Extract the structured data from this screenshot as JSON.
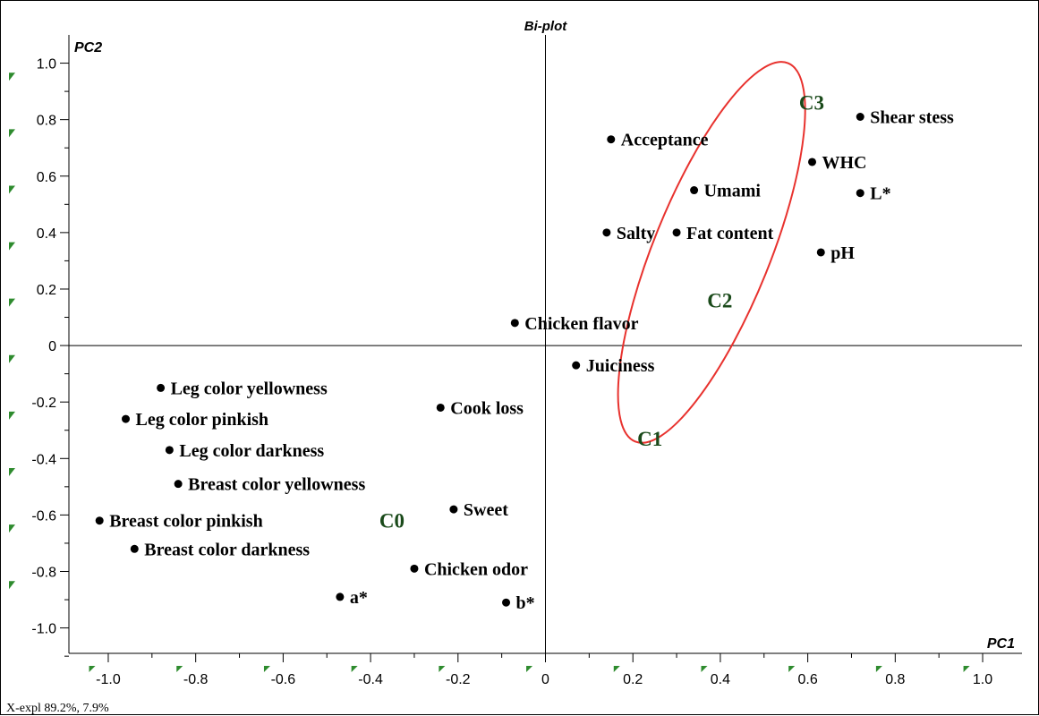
{
  "chart_data": {
    "type": "scatter",
    "title": "Bi-plot",
    "xlabel": "PC1",
    "ylabel": "PC2",
    "xlim": [
      -1.09,
      1.09
    ],
    "ylim": [
      -1.09,
      1.1
    ],
    "xticks": [
      -1.0,
      -0.8,
      -0.6,
      -0.4,
      -0.2,
      0,
      0.2,
      0.4,
      0.6,
      0.8,
      1.0
    ],
    "xtick_labels": [
      "-1.0",
      "-0.8",
      "-0.6",
      "-0.4",
      "-0.2",
      "0",
      "0.2",
      "0.4",
      "0.6",
      "0.8",
      "1.0"
    ],
    "yticks": [
      1.0,
      0.8,
      0.6,
      0.4,
      0.2,
      0,
      -0.2,
      -0.4,
      -0.6,
      -0.8,
      -1.0
    ],
    "ytick_labels": [
      "1.0",
      "0.8",
      "0.6",
      "0.4",
      "0.2",
      "0",
      "-0.2",
      "-0.4",
      "-0.6",
      "-0.8",
      "-1.0"
    ],
    "points": [
      {
        "label": "Shear stess",
        "x": 0.72,
        "y": 0.81
      },
      {
        "label": "Acceptance",
        "x": 0.15,
        "y": 0.73
      },
      {
        "label": "WHC",
        "x": 0.61,
        "y": 0.65
      },
      {
        "label": "Umami",
        "x": 0.34,
        "y": 0.55
      },
      {
        "label": "L*",
        "x": 0.72,
        "y": 0.54
      },
      {
        "label": "Salty",
        "x": 0.14,
        "y": 0.4
      },
      {
        "label": "Fat content",
        "x": 0.3,
        "y": 0.4
      },
      {
        "label": "pH",
        "x": 0.63,
        "y": 0.33
      },
      {
        "label": "Chicken flavor",
        "x": -0.07,
        "y": 0.08
      },
      {
        "label": "Juiciness",
        "x": 0.07,
        "y": -0.07
      },
      {
        "label": "Leg  color yellowness",
        "x": -0.88,
        "y": -0.15
      },
      {
        "label": "Cook loss",
        "x": -0.24,
        "y": -0.22
      },
      {
        "label": "Leg  color pinkish",
        "x": -0.96,
        "y": -0.26
      },
      {
        "label": "Leg  color darkness",
        "x": -0.86,
        "y": -0.37
      },
      {
        "label": "Breast  color yellowness",
        "x": -0.84,
        "y": -0.49
      },
      {
        "label": "Sweet",
        "x": -0.21,
        "y": -0.58
      },
      {
        "label": "Breast  color pinkish",
        "x": -1.02,
        "y": -0.62
      },
      {
        "label": "Breast  color darkness",
        "x": -0.94,
        "y": -0.72
      },
      {
        "label": "Chicken odor",
        "x": -0.3,
        "y": -0.79
      },
      {
        "label": "a*",
        "x": -0.47,
        "y": -0.89
      },
      {
        "label": "b*",
        "x": -0.09,
        "y": -0.91
      }
    ],
    "clusters": [
      {
        "label": "C0",
        "x": -0.38,
        "y": -0.62
      },
      {
        "label": "C1",
        "x": 0.21,
        "y": -0.33
      },
      {
        "label": "C2",
        "x": 0.37,
        "y": 0.16
      },
      {
        "label": "C3",
        "x": 0.58,
        "y": 0.86
      }
    ],
    "ellipse": {
      "center_x": 0.38,
      "center_y": 0.33,
      "color": "#e8322e"
    },
    "grid": false,
    "footer": "X-expl 89.2%, 7.9%"
  }
}
